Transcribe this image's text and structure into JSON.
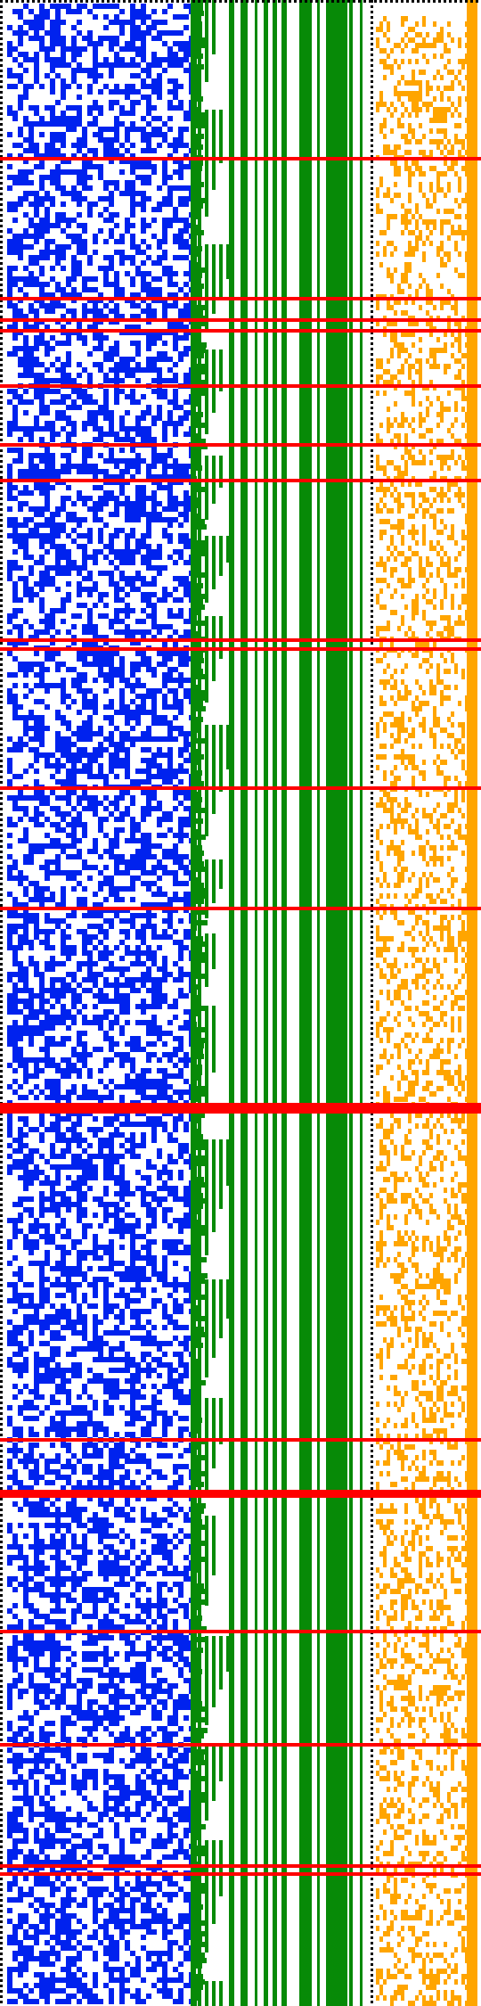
{
  "visualization": {
    "panels": [
      {
        "name": "blue-noise-panel",
        "color": "#0022ee",
        "density": 0.5
      },
      {
        "name": "green-staircase-panel",
        "color": "#078a07"
      },
      {
        "name": "orange-noise-panel",
        "color": "#ffa500",
        "density": 0.33
      }
    ],
    "border_colors": {
      "dotted": "#000000",
      "marker_lines": "#ff0000"
    },
    "green_stripes": [
      {
        "name": "green-stripe-1"
      },
      {
        "name": "green-stripe-2"
      },
      {
        "name": "green-stripe-3"
      },
      {
        "name": "green-stripe-4"
      },
      {
        "name": "green-stripe-5"
      },
      {
        "name": "green-stripe-6"
      },
      {
        "name": "green-stripe-7"
      },
      {
        "name": "green-stripe-8"
      },
      {
        "name": "green-stripe-9"
      },
      {
        "name": "green-stripe-10"
      },
      {
        "name": "green-stripe-11"
      }
    ],
    "marker_line_count": 20
  }
}
